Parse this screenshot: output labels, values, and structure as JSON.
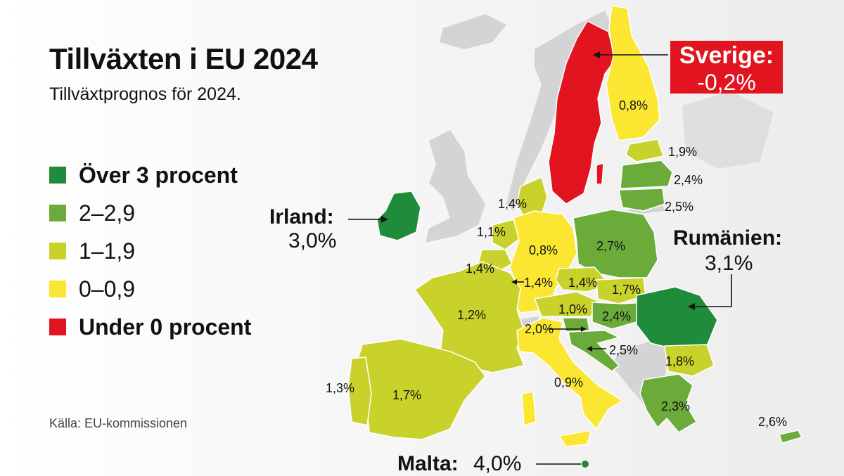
{
  "title": "Tillväxten i EU 2024",
  "subtitle": "Tillväxtprognos för 2024.",
  "legend": [
    {
      "label": "Över 3 procent",
      "color": "#1e8c3a",
      "bold": true
    },
    {
      "label": "2–2,9",
      "color": "#6aab3a",
      "bold": false
    },
    {
      "label": "1–1,9",
      "color": "#c8d22a",
      "bold": false
    },
    {
      "label": "0–0,9",
      "color": "#fbe632",
      "bold": false
    },
    {
      "label": "Under 0 procent",
      "color": "#e1141f",
      "bold": true
    }
  ],
  "source": "Källa: EU-kommissionen",
  "callouts": {
    "sverige": {
      "name": "Sverige:",
      "value": "-0,2%"
    },
    "irland": {
      "name": "Irland:",
      "value": "3,0%"
    },
    "rumanien": {
      "name": "Rumänien:",
      "value": "3,1%"
    },
    "malta": {
      "name": "Malta:",
      "value": "4,0%"
    }
  },
  "map_labels": {
    "finland": "0,8%",
    "estonia": "1,9%",
    "latvia": "2,4%",
    "lithuania": "2,5%",
    "denmark": "1,4%",
    "netherlands": "1,1%",
    "belgium": "1,4%",
    "luxembourg": "1,4%",
    "germany": "0,8%",
    "poland": "2,7%",
    "czechia": "1,4%",
    "slovakia": "1,7%",
    "austria": "1,0%",
    "hungary": "2,4%",
    "slovenia": "2,0%",
    "croatia": "2,5%",
    "bulgaria": "1,8%",
    "france": "1,2%",
    "italy": "0,9%",
    "greece": "2,3%",
    "cyprus": "2,6%",
    "spain": "1,7%",
    "portugal": "1,3%"
  },
  "colors": {
    "over3": "#1e8c3a",
    "band2": "#6aab3a",
    "band1": "#c8d22a",
    "band0": "#fbe632",
    "negative": "#e1141f",
    "non_eu": "#d4d4d4"
  }
}
